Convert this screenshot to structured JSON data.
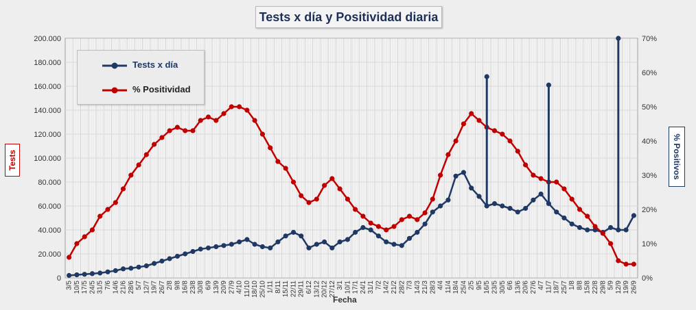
{
  "chart_data": {
    "type": "line",
    "title": "Tests x día y Positividad  diaria",
    "xlabel": "Fecha",
    "ylabel_left": "Tests",
    "ylabel_right": "% Positivos",
    "ylim_left": [
      0,
      200000
    ],
    "ylim_right": [
      0,
      70
    ],
    "yticks_left": [
      "0",
      "20.000",
      "40.000",
      "60.000",
      "80.000",
      "100.000",
      "120.000",
      "140.000",
      "160.000",
      "180.000",
      "200.000"
    ],
    "yticks_right": [
      "0%",
      "10%",
      "20%",
      "30%",
      "40%",
      "50%",
      "60%",
      "70%"
    ],
    "x_tick_labels": [
      "3/5",
      "10/5",
      "17/5",
      "24/5",
      "31/5",
      "7/6",
      "14/6",
      "21/6",
      "28/6",
      "5/7",
      "12/7",
      "19/7",
      "26/7",
      "2/8",
      "9/8",
      "16/8",
      "23/8",
      "30/8",
      "6/9",
      "13/9",
      "20/9",
      "27/9",
      "4/10",
      "11/10",
      "18/10",
      "25/10",
      "1/11",
      "8/11",
      "15/11",
      "22/11",
      "29/11",
      "6/12",
      "13/12",
      "20/12",
      "27/12",
      "3/1",
      "10/1",
      "17/1",
      "24/1",
      "31/1",
      "7/2",
      "14/2",
      "21/2",
      "28/2",
      "7/3",
      "14/3",
      "21/3",
      "28/3",
      "4/4",
      "11/4",
      "18/4",
      "25/4",
      "2/5",
      "9/5",
      "16/5",
      "23/5",
      "30/5",
      "6/6",
      "13/6",
      "20/6",
      "27/6",
      "4/7",
      "11/7",
      "18/7",
      "25/7",
      "1/8",
      "8/8",
      "15/8",
      "22/8",
      "29/8",
      "5/9",
      "12/9",
      "19/9",
      "26/9"
    ],
    "grid": true,
    "legend_position": "top-left",
    "legend": [
      "Tests x día",
      "% Positividad"
    ],
    "series": [
      {
        "name": "Tests x día",
        "axis": "left",
        "color": "#1f3864",
        "values": [
          2000,
          2500,
          3000,
          3500,
          4000,
          5000,
          6000,
          7500,
          8000,
          9000,
          10000,
          12000,
          14000,
          16000,
          18000,
          20000,
          22000,
          24000,
          25000,
          26000,
          27000,
          28000,
          30000,
          32000,
          28000,
          26000,
          25000,
          30000,
          35000,
          38000,
          35000,
          25000,
          28000,
          30000,
          25000,
          30000,
          32000,
          38000,
          42000,
          40000,
          35000,
          30000,
          28000,
          27000,
          33000,
          38000,
          45000,
          55000,
          60000,
          65000,
          85000,
          88000,
          75000,
          68000,
          60000,
          62000,
          60000,
          58000,
          55000,
          58000,
          65000,
          70000,
          62000,
          55000,
          50000,
          45000,
          42000,
          40000,
          40000,
          38000,
          42000,
          40000,
          40000,
          52000
        ]
      },
      {
        "name": "% Positividad",
        "axis": "right",
        "color": "#c00000",
        "values": [
          6,
          10,
          12,
          14,
          18,
          20,
          22,
          26,
          30,
          33,
          36,
          39,
          41,
          43,
          44,
          43,
          43,
          46,
          47,
          46,
          48,
          50,
          50,
          49,
          46,
          42,
          38,
          34,
          32,
          28,
          24,
          22,
          23,
          27,
          29,
          26,
          23,
          20,
          18,
          16,
          15,
          14,
          15,
          17,
          18,
          17,
          19,
          23,
          30,
          36,
          40,
          45,
          48,
          46,
          44,
          43,
          42,
          40,
          37,
          33,
          30,
          29,
          28,
          28,
          26,
          23,
          20,
          18,
          15,
          13,
          10,
          5,
          4,
          4
        ]
      }
    ],
    "annotations": [
      {
        "series": "Tests x día",
        "x": "16/5",
        "y": 168000
      },
      {
        "series": "Tests x día",
        "x": "11/7",
        "y": 161000
      },
      {
        "series": "Tests x día",
        "x": "12/9",
        "y": 200000
      }
    ]
  }
}
